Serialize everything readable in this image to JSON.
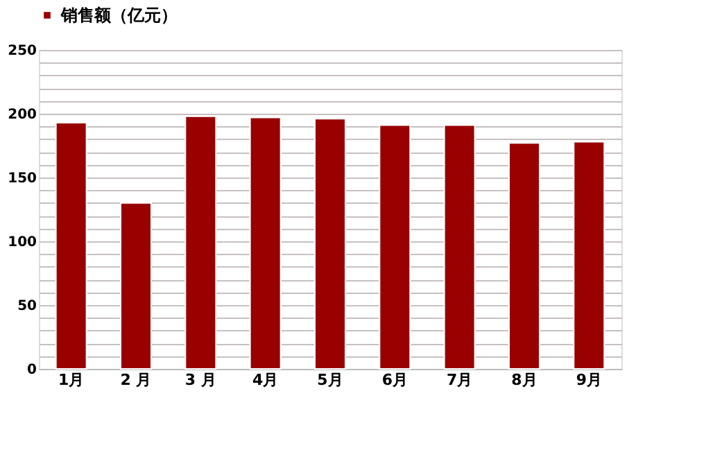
{
  "chart_data": {
    "type": "bar",
    "categories": [
      "1月",
      "2 月",
      "3 月",
      "4月",
      "5月",
      "6月",
      "7月",
      "8月",
      "9月"
    ],
    "series": [
      {
        "name": "销售额（亿元）",
        "color": "#990000",
        "values": [
          193,
          130,
          198,
          197,
          196,
          191,
          191,
          177,
          178
        ]
      }
    ],
    "ylim": [
      0,
      250
    ],
    "yticks": [
      0,
      {
        "value": 10,
        "label": null
      },
      {
        "value": 20,
        "label": null
      },
      {
        "value": 30,
        "label": null
      },
      {
        "value": 40,
        "label": null
      },
      50,
      {
        "value": 60,
        "label": null
      },
      {
        "value": 70,
        "label": null
      },
      {
        "value": 80,
        "label": null
      },
      {
        "value": 90,
        "label": null
      },
      100,
      {
        "value": 110,
        "label": null
      },
      {
        "value": 120,
        "label": null
      },
      {
        "value": 130,
        "label": null
      },
      {
        "value": 140,
        "label": null
      },
      150,
      {
        "value": 160,
        "label": null
      },
      {
        "value": 170,
        "label": null
      },
      {
        "value": 180,
        "label": null
      },
      {
        "value": 190,
        "label": null
      },
      200,
      {
        "value": 210,
        "label": null
      },
      {
        "value": 220,
        "label": null
      },
      {
        "value": 230,
        "label": null
      },
      {
        "value": 240,
        "label": null
      },
      250
    ],
    "grid": "y",
    "legend": "top"
  }
}
